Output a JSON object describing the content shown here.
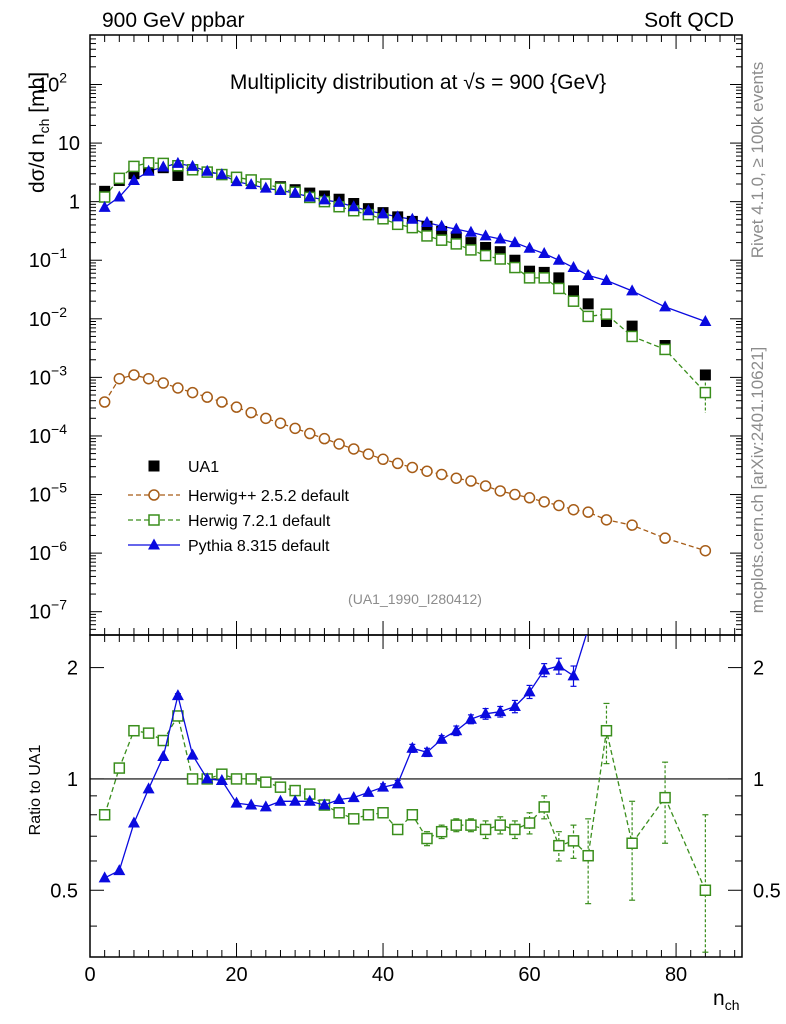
{
  "header": {
    "left": "900 GeV ppbar",
    "right": "Soft QCD"
  },
  "side_labels": {
    "top": "Rivet 4.1.0, ≥ 100k events",
    "bottom": "mcplots.cern.ch [arXiv:2401.10621]"
  },
  "colors": {
    "ua1": "#000000",
    "herwigpp": "#a65c17",
    "herwig7": "#3a8e1c",
    "pythia": "#0a0adf"
  },
  "chart_data": [
    {
      "type": "scatter",
      "title_prefix": "Multiplicity distribution at ",
      "title_sqrt": "√s",
      "title_suffix": " = 900 {GeV}",
      "ylabel": "dσ/d n",
      "ylabel_sub": "ch",
      "ylabel_unit": " [mb]",
      "yscale": "log",
      "ylim": [
        4e-08,
        700
      ],
      "xlim": [
        0,
        89
      ],
      "y_ticks": [
        {
          "v": 1e-07,
          "base": "10",
          "exp": "−7"
        },
        {
          "v": 1e-06,
          "base": "10",
          "exp": "−6"
        },
        {
          "v": 1e-05,
          "base": "10",
          "exp": "−5"
        },
        {
          "v": 0.0001,
          "base": "10",
          "exp": "−4"
        },
        {
          "v": 0.001,
          "base": "10",
          "exp": "−3"
        },
        {
          "v": 0.01,
          "base": "10",
          "exp": "−2"
        },
        {
          "v": 0.1,
          "base": "10",
          "exp": "−1"
        },
        {
          "v": 1,
          "base": "1",
          "exp": ""
        },
        {
          "v": 10,
          "base": "10",
          "exp": ""
        },
        {
          "v": 100,
          "base": "10",
          "exp": "2"
        }
      ],
      "watermark": "(UA1_1990_I280412)",
      "legend_position": "lower-left",
      "x": [
        2,
        4,
        6,
        8,
        10,
        12,
        14,
        16,
        18,
        20,
        22,
        24,
        26,
        28,
        30,
        32,
        34,
        36,
        38,
        40,
        42,
        44,
        46,
        48,
        50,
        52,
        54,
        56,
        58,
        60,
        62,
        64,
        66,
        68,
        70.5,
        74,
        78.5,
        84
      ],
      "series": [
        {
          "name": "UA1",
          "marker": "square-filled",
          "values": [
            1.5,
            2.3,
            3.0,
            3.5,
            3.8,
            2.8,
            3.5,
            3.2,
            2.9,
            2.6,
            2.3,
            2.0,
            1.8,
            1.6,
            1.4,
            1.25,
            1.1,
            0.93,
            0.76,
            0.65,
            0.55,
            0.46,
            0.38,
            0.31,
            0.25,
            0.2,
            0.165,
            0.14,
            0.1,
            0.065,
            0.062,
            0.05,
            0.03,
            0.018,
            0.009,
            0.0075,
            0.0035,
            0.0011
          ]
        },
        {
          "name": "Herwig++ 2.5.2 default",
          "marker": "circle-open",
          "line": "dashed",
          "values": [
            0.00038,
            0.00095,
            0.0011,
            0.00095,
            0.0008,
            0.00066,
            0.00055,
            0.00046,
            0.00038,
            0.00031,
            0.00025,
            0.0002,
            0.000165,
            0.000135,
            0.00011,
            9e-05,
            7.3e-05,
            6e-05,
            4.9e-05,
            4e-05,
            3.4e-05,
            2.9e-05,
            2.5e-05,
            2.2e-05,
            1.9e-05,
            1.7e-05,
            1.4e-05,
            1.15e-05,
            1e-05,
            8.8e-06,
            7.5e-06,
            6.5e-06,
            5.5e-06,
            5e-06,
            3.7e-06,
            3e-06,
            1.8e-06,
            1.1e-06
          ]
        },
        {
          "name": "Herwig 7.2.1 default",
          "marker": "square-open",
          "line": "dashed",
          "values": [
            1.2,
            2.5,
            4.0,
            4.6,
            4.5,
            4.1,
            3.5,
            3.2,
            2.9,
            2.6,
            2.35,
            2.0,
            1.7,
            1.45,
            1.18,
            1.0,
            0.82,
            0.7,
            0.6,
            0.51,
            0.41,
            0.36,
            0.26,
            0.22,
            0.19,
            0.15,
            0.12,
            0.105,
            0.075,
            0.05,
            0.05,
            0.033,
            0.02,
            0.011,
            0.012,
            0.005,
            0.003,
            0.00055
          ]
        },
        {
          "name": "Pythia 8.315 default",
          "marker": "triangle-filled",
          "line": "solid",
          "values": [
            0.8,
            1.2,
            2.3,
            3.3,
            3.9,
            4.5,
            4.0,
            3.3,
            2.9,
            2.2,
            1.95,
            1.7,
            1.55,
            1.4,
            1.2,
            1.07,
            0.97,
            0.82,
            0.7,
            0.62,
            0.55,
            0.5,
            0.44,
            0.38,
            0.34,
            0.3,
            0.26,
            0.23,
            0.2,
            0.16,
            0.13,
            0.1,
            0.075,
            0.055,
            0.045,
            0.03,
            0.016,
            0.009
          ]
        }
      ]
    },
    {
      "type": "scatter",
      "ylabel": "Ratio to UA1",
      "xlabel": "n",
      "xlabel_sub": "ch",
      "yscale": "log",
      "ylim": [
        0.33,
        2.45
      ],
      "xlim": [
        0,
        89
      ],
      "reference_line": 1,
      "y_ticks": [
        {
          "v": 0.5,
          "label": "0.5"
        },
        {
          "v": 1,
          "label": "1"
        },
        {
          "v": 2,
          "label": "2"
        }
      ],
      "x_ticks": [
        {
          "v": 0,
          "label": "0"
        },
        {
          "v": 20,
          "label": "20"
        },
        {
          "v": 40,
          "label": "40"
        },
        {
          "v": 60,
          "label": "60"
        },
        {
          "v": 80,
          "label": "80"
        }
      ],
      "series": [
        {
          "name": "Herwig 7.2.1 default",
          "marker": "square-open",
          "line": "dashed",
          "x": [
            2,
            4,
            6,
            8,
            10,
            12,
            14,
            16,
            18,
            20,
            22,
            24,
            26,
            28,
            30,
            32,
            34,
            36,
            38,
            40,
            42,
            44,
            46,
            48,
            50,
            52,
            54,
            56,
            58,
            60,
            62,
            64,
            66,
            68,
            70.5,
            74,
            78.5,
            84
          ],
          "values": [
            0.8,
            1.07,
            1.35,
            1.33,
            1.27,
            1.48,
            1.0,
            1.0,
            1.03,
            1.0,
            1.0,
            0.98,
            0.95,
            0.93,
            0.91,
            0.85,
            0.81,
            0.78,
            0.8,
            0.81,
            0.73,
            0.8,
            0.69,
            0.72,
            0.75,
            0.75,
            0.73,
            0.75,
            0.73,
            0.76,
            0.84,
            0.66,
            0.68,
            0.62,
            1.35,
            0.67,
            0.89,
            0.5
          ],
          "errors": [
            0.01,
            0.01,
            0.01,
            0.01,
            0.01,
            0.01,
            0.01,
            0.01,
            0.01,
            0.01,
            0.01,
            0.01,
            0.01,
            0.01,
            0.01,
            0.01,
            0.01,
            0.01,
            0.01,
            0.01,
            0.02,
            0.02,
            0.03,
            0.03,
            0.03,
            0.03,
            0.04,
            0.04,
            0.04,
            0.05,
            0.06,
            0.06,
            0.07,
            0.16,
            0.25,
            0.2,
            0.22,
            0.3
          ]
        },
        {
          "name": "Pythia 8.315 default",
          "marker": "triangle-filled",
          "line": "solid",
          "x": [
            2,
            4,
            6,
            8,
            10,
            12,
            14,
            16,
            18,
            20,
            22,
            24,
            26,
            28,
            30,
            32,
            34,
            36,
            38,
            40,
            42,
            44,
            46,
            48,
            50,
            52,
            54,
            56,
            58,
            60,
            62,
            64,
            66
          ],
          "values": [
            0.54,
            0.565,
            0.76,
            0.94,
            1.15,
            1.68,
            1.16,
            1.0,
            0.99,
            0.86,
            0.85,
            0.84,
            0.87,
            0.87,
            0.87,
            0.85,
            0.88,
            0.89,
            0.92,
            0.95,
            0.97,
            1.21,
            1.18,
            1.28,
            1.35,
            1.45,
            1.5,
            1.52,
            1.57,
            1.72,
            1.97,
            2.02,
            1.9
          ],
          "errors": [
            0.01,
            0.01,
            0.01,
            0.01,
            0.01,
            0.02,
            0.01,
            0.01,
            0.01,
            0.01,
            0.01,
            0.01,
            0.01,
            0.01,
            0.01,
            0.01,
            0.01,
            0.01,
            0.01,
            0.02,
            0.02,
            0.03,
            0.03,
            0.03,
            0.04,
            0.04,
            0.05,
            0.05,
            0.06,
            0.07,
            0.08,
            0.1,
            0.12
          ],
          "tail_x": [
            66,
            68
          ],
          "tail_values": [
            1.9,
            2.55
          ]
        }
      ]
    }
  ]
}
